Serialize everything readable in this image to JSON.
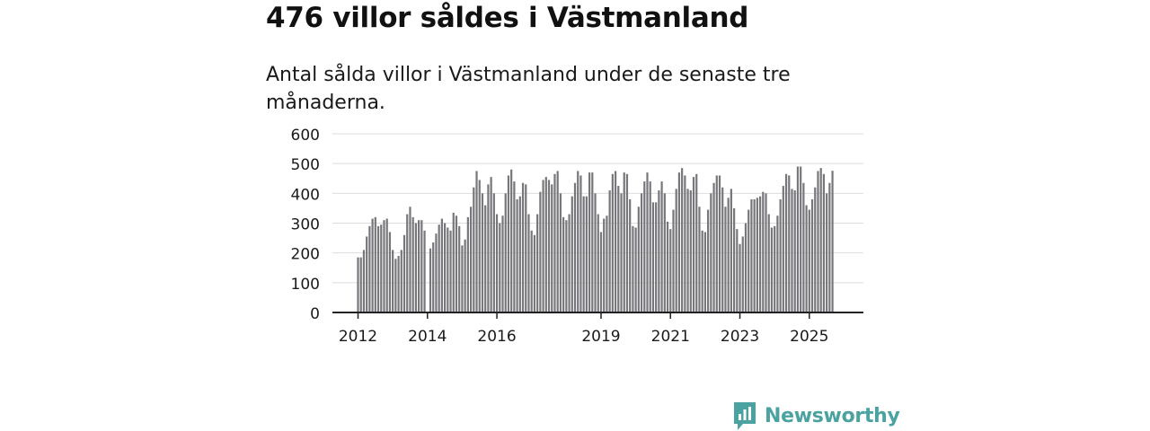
{
  "header": {
    "title": "476 villor såldes i Västmanland",
    "subtitle": "Antal sålda villor i Västmanland under de senaste tre månaderna."
  },
  "brand": {
    "name": "Newsworthy",
    "color": "#4aa3a0",
    "icon": "bar-chart-bubble-icon"
  },
  "colors": {
    "bar": "#77767b",
    "highlight": "#1a9c96",
    "grid": "#dddddd",
    "axis": "#222222"
  },
  "chart_data": {
    "type": "bar",
    "title": "476 villor såldes i Västmanland",
    "xlabel": "",
    "ylabel": "",
    "ylim": [
      0,
      600
    ],
    "yticks": [
      0,
      100,
      200,
      300,
      400,
      500,
      600
    ],
    "xticks": [
      {
        "label": "2012",
        "index": 0
      },
      {
        "label": "2014",
        "index": 24
      },
      {
        "label": "2016",
        "index": 48
      },
      {
        "label": "2019",
        "index": 84
      },
      {
        "label": "2021",
        "index": 108
      },
      {
        "label": "2023",
        "index": 132
      },
      {
        "label": "2025",
        "index": 156
      }
    ],
    "highlight_label": "476",
    "highlight_index": 166,
    "series": [
      {
        "name": "Antal sålda villor (3 månader)",
        "values": [
          185,
          185,
          210,
          255,
          290,
          315,
          320,
          290,
          295,
          310,
          315,
          270,
          210,
          180,
          190,
          210,
          260,
          330,
          355,
          320,
          300,
          310,
          310,
          275,
          0,
          215,
          235,
          265,
          295,
          315,
          300,
          285,
          275,
          335,
          325,
          290,
          225,
          245,
          320,
          355,
          420,
          475,
          445,
          400,
          360,
          430,
          455,
          400,
          330,
          300,
          325,
          400,
          460,
          480,
          440,
          380,
          390,
          435,
          430,
          330,
          275,
          260,
          330,
          405,
          445,
          455,
          445,
          430,
          465,
          475,
          400,
          320,
          310,
          330,
          390,
          435,
          475,
          460,
          390,
          390,
          470,
          470,
          400,
          330,
          270,
          315,
          325,
          410,
          465,
          475,
          425,
          400,
          470,
          465,
          380,
          290,
          285,
          355,
          400,
          440,
          470,
          440,
          370,
          370,
          410,
          440,
          400,
          305,
          280,
          345,
          415,
          470,
          485,
          460,
          415,
          410,
          455,
          465,
          355,
          275,
          270,
          345,
          400,
          435,
          460,
          460,
          420,
          355,
          385,
          415,
          350,
          280,
          230,
          255,
          300,
          345,
          380,
          380,
          385,
          390,
          405,
          400,
          330,
          285,
          290,
          325,
          380,
          425,
          465,
          460,
          415,
          410,
          490,
          490,
          435,
          360,
          345,
          380,
          420,
          475,
          485,
          465,
          400,
          435,
          476
        ]
      }
    ]
  }
}
